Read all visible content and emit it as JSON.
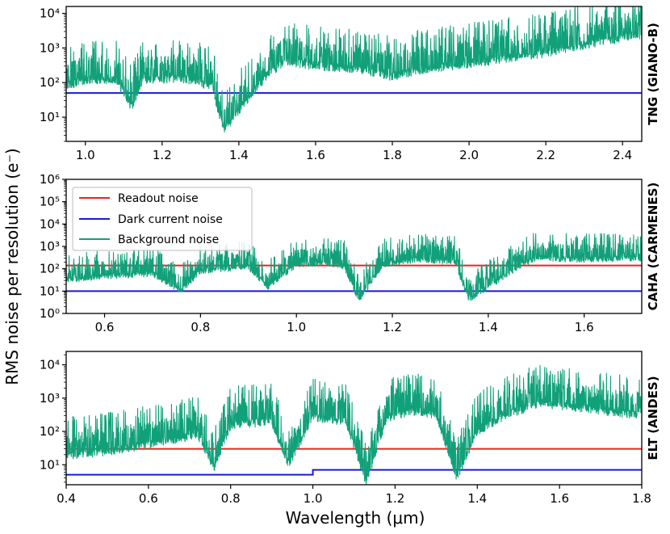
{
  "figure": {
    "ylabel": "RMS noise per resolution (e⁻)",
    "xlabel": "Wavelength (μm)"
  },
  "colors": {
    "readout": "#ee2222",
    "dark": "#1a1adc",
    "background": "#11a17a"
  },
  "legend": [
    "Readout noise",
    "Dark current noise",
    "Background noise"
  ],
  "chart_data": [
    {
      "type": "line",
      "title": "TNG (GIANO-B)",
      "xlim": [
        0.95,
        2.45
      ],
      "ylim_log10": [
        0.3,
        4.2
      ],
      "xticks": [
        1.0,
        1.2,
        1.4,
        1.6,
        1.8,
        2.0,
        2.2,
        2.4
      ],
      "xtick_labels": [
        "1.0",
        "1.2",
        "1.4",
        "1.6",
        "1.8",
        "2.0",
        "2.2",
        "2.4"
      ],
      "yticks_log10": [
        1,
        2,
        3,
        4
      ],
      "ytick_labels": [
        "10¹",
        "10²",
        "10³",
        "10⁴"
      ],
      "series": [
        {
          "name": "Dark current noise",
          "x": [
            0.95,
            2.45
          ],
          "y": [
            50,
            50
          ]
        },
        {
          "name": "Background noise",
          "x": [
            0.95,
            1.0,
            1.08,
            1.12,
            1.15,
            1.25,
            1.33,
            1.36,
            1.42,
            1.47,
            1.52,
            1.6,
            1.7,
            1.8,
            1.9,
            2.0,
            2.1,
            2.2,
            2.3,
            2.4,
            2.45
          ],
          "y": [
            80,
            120,
            120,
            20,
            120,
            130,
            80,
            4,
            30,
            150,
            400,
            300,
            250,
            150,
            260,
            350,
            500,
            700,
            1200,
            2000,
            2500
          ]
        }
      ]
    },
    {
      "type": "line",
      "title": "CAHA (CARMENES)",
      "xlim": [
        0.52,
        1.72
      ],
      "ylim_log10": [
        0,
        6
      ],
      "xticks": [
        0.6,
        0.8,
        1.0,
        1.2,
        1.4,
        1.6
      ],
      "xtick_labels": [
        "0.6",
        "0.8",
        "1.0",
        "1.2",
        "1.4",
        "1.6"
      ],
      "yticks_log10": [
        0,
        1,
        2,
        3,
        4,
        5,
        6
      ],
      "ytick_labels": [
        "10⁰",
        "10¹",
        "10²",
        "10³",
        "10⁴",
        "10⁵",
        "10⁶"
      ],
      "series": [
        {
          "name": "Readout noise",
          "x": [
            0.52,
            1.72
          ],
          "y": [
            140,
            140
          ]
        },
        {
          "name": "Dark current noise",
          "x": [
            0.52,
            1.72
          ],
          "y": [
            10,
            10
          ]
        },
        {
          "name": "Background noise",
          "x": [
            0.52,
            0.6,
            0.7,
            0.76,
            0.8,
            0.9,
            0.94,
            1.0,
            1.05,
            1.1,
            1.13,
            1.18,
            1.25,
            1.33,
            1.36,
            1.42,
            1.47,
            1.5,
            1.6,
            1.72
          ],
          "y": [
            30,
            45,
            60,
            10,
            80,
            120,
            15,
            150,
            180,
            120,
            4,
            150,
            250,
            200,
            4,
            30,
            150,
            300,
            250,
            300
          ]
        }
      ]
    },
    {
      "type": "line",
      "title": "ELT (ANDES)",
      "xlim": [
        0.4,
        1.8
      ],
      "ylim_log10": [
        0.4,
        4.4
      ],
      "xticks": [
        0.4,
        0.6,
        0.8,
        1.0,
        1.2,
        1.4,
        1.6,
        1.8
      ],
      "xtick_labels": [
        "0.4",
        "0.6",
        "0.8",
        "1.0",
        "1.2",
        "1.4",
        "1.6",
        "1.8"
      ],
      "yticks_log10": [
        1,
        2,
        3,
        4
      ],
      "ytick_labels": [
        "10¹",
        "10²",
        "10³",
        "10⁴"
      ],
      "series": [
        {
          "name": "Readout noise",
          "x": [
            0.4,
            1.8
          ],
          "y": [
            30,
            30
          ]
        },
        {
          "name": "Dark current noise",
          "x": [
            0.4,
            1.0,
            1.0,
            1.8
          ],
          "y": [
            5,
            5,
            7,
            7
          ]
        },
        {
          "name": "Background noise",
          "x": [
            0.4,
            0.5,
            0.6,
            0.68,
            0.72,
            0.76,
            0.8,
            0.9,
            0.94,
            1.0,
            1.08,
            1.13,
            1.18,
            1.25,
            1.3,
            1.35,
            1.4,
            1.47,
            1.55,
            1.65,
            1.8
          ],
          "y": [
            18,
            25,
            40,
            60,
            80,
            8,
            150,
            200,
            10,
            250,
            200,
            3,
            250,
            400,
            300,
            4,
            100,
            300,
            700,
            500,
            300
          ]
        }
      ]
    }
  ]
}
